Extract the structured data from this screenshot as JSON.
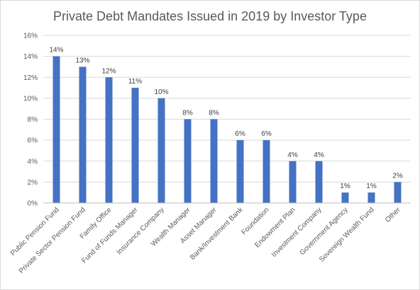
{
  "chart_data": {
    "type": "bar",
    "title": "Private Debt Mandates Issued in 2019 by Investor Type",
    "xlabel": "",
    "ylabel": "",
    "ylim": [
      0,
      16
    ],
    "y_ticks": [
      "0%",
      "2%",
      "4%",
      "6%",
      "8%",
      "10%",
      "12%",
      "14%",
      "16%"
    ],
    "y_tick_values": [
      0,
      2,
      4,
      6,
      8,
      10,
      12,
      14,
      16
    ],
    "grid": true,
    "legend": "none",
    "bar_color": "#4472c4",
    "categories": [
      "Public Pension Fund",
      "Private Sector Pension Fund",
      "Family Office",
      "Fund of Funds Manager",
      "Insurance Company",
      "Wealth Manager",
      "Asset Manager",
      "Bank/Investment Bank",
      "Foundation",
      "Endowment Plan",
      "Investment Company",
      "Government Agency",
      "Sovereign Wealth Fund",
      "Other"
    ],
    "values": [
      14,
      13,
      12,
      11,
      10,
      8,
      8,
      6,
      6,
      4,
      4,
      1,
      1,
      2
    ],
    "data_labels": [
      "14%",
      "13%",
      "12%",
      "11%",
      "10%",
      "8%",
      "8%",
      "6%",
      "6%",
      "4%",
      "4%",
      "1%",
      "1%",
      "2%"
    ]
  }
}
